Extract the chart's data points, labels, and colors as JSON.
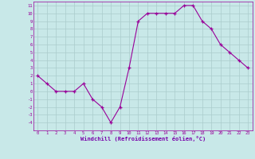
{
  "x": [
    0,
    1,
    2,
    3,
    4,
    5,
    6,
    7,
    8,
    9,
    10,
    11,
    12,
    13,
    14,
    15,
    16,
    17,
    18,
    19,
    20,
    21,
    22,
    23
  ],
  "y": [
    2,
    1,
    0,
    0,
    0,
    1,
    -1,
    -2,
    -4,
    -2,
    3,
    9,
    10,
    10,
    10,
    10,
    11,
    11,
    9,
    8,
    6,
    5,
    4,
    3
  ],
  "line_color": "#990099",
  "marker_color": "#990099",
  "bg_color": "#c8e8e8",
  "grid_color": "#aacccc",
  "xlabel": "Windchill (Refroidissement éolien,°C)",
  "xlabel_color": "#7700aa",
  "xlim": [
    -0.5,
    23.5
  ],
  "ylim": [
    -5,
    11.5
  ],
  "yticks": [
    -4,
    -3,
    -2,
    -1,
    0,
    1,
    2,
    3,
    4,
    5,
    6,
    7,
    8,
    9,
    10,
    11
  ],
  "xticks": [
    0,
    1,
    2,
    3,
    4,
    5,
    6,
    7,
    8,
    9,
    10,
    11,
    12,
    13,
    14,
    15,
    16,
    17,
    18,
    19,
    20,
    21,
    22,
    23
  ]
}
